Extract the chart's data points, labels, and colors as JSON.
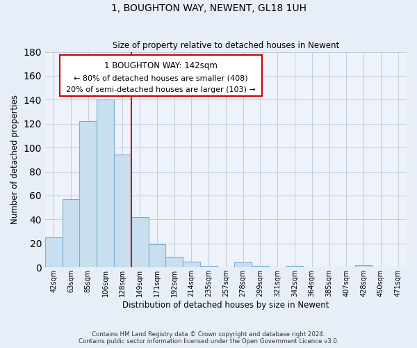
{
  "title": "1, BOUGHTON WAY, NEWENT, GL18 1UH",
  "subtitle": "Size of property relative to detached houses in Newent",
  "xlabel": "Distribution of detached houses by size in Newent",
  "ylabel": "Number of detached properties",
  "bar_labels": [
    "42sqm",
    "63sqm",
    "85sqm",
    "106sqm",
    "128sqm",
    "149sqm",
    "171sqm",
    "192sqm",
    "214sqm",
    "235sqm",
    "257sqm",
    "278sqm",
    "299sqm",
    "321sqm",
    "342sqm",
    "364sqm",
    "385sqm",
    "407sqm",
    "428sqm",
    "450sqm",
    "471sqm"
  ],
  "bar_values": [
    25,
    57,
    122,
    140,
    94,
    42,
    19,
    9,
    5,
    1,
    0,
    4,
    1,
    0,
    1,
    0,
    0,
    0,
    2,
    0,
    0
  ],
  "bar_color": "#c8dff0",
  "bar_edge_color": "#7aafd4",
  "ylim": [
    0,
    180
  ],
  "yticks": [
    0,
    20,
    40,
    60,
    80,
    100,
    120,
    140,
    160,
    180
  ],
  "property_line_x": 4.5,
  "property_line_color": "#cc0000",
  "annotation_title": "1 BOUGHTON WAY: 142sqm",
  "annotation_line1": "← 80% of detached houses are smaller (408)",
  "annotation_line2": "20% of semi-detached houses are larger (103) →",
  "footer_line1": "Contains HM Land Registry data © Crown copyright and database right 2024.",
  "footer_line2": "Contains public sector information licensed under the Open Government Licence v3.0.",
  "background_color": "#e8eef8",
  "plot_bg_color": "#eef2fa",
  "grid_color": "#c0ccdd"
}
